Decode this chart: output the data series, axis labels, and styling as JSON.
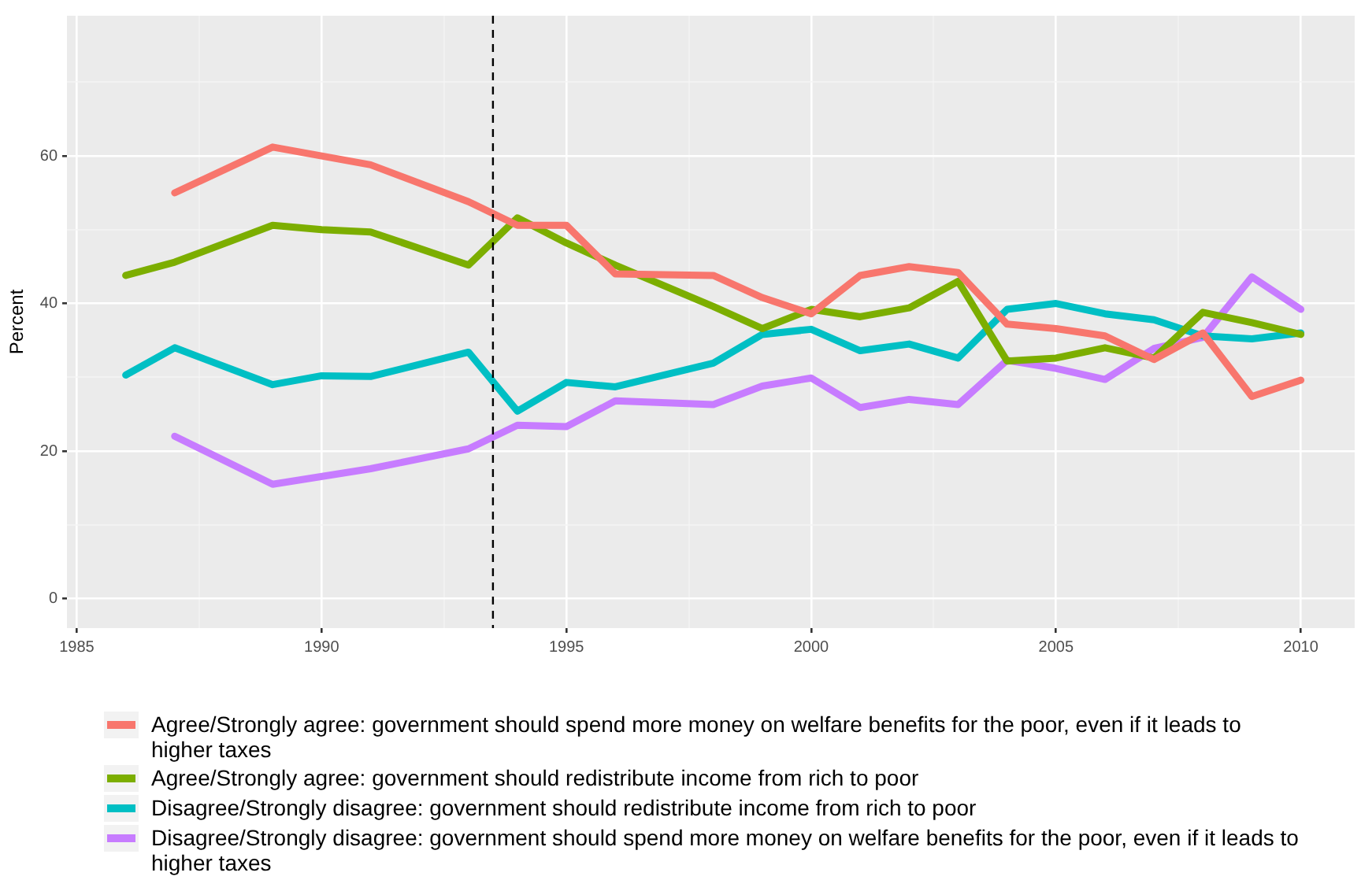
{
  "chart_data": {
    "type": "line",
    "ylabel": "Percent",
    "xlim": [
      1984.8,
      2011.1
    ],
    "ylim": [
      -4,
      79
    ],
    "xticks": [
      1985,
      {
        "value": 1987.5,
        "label": null
      },
      1990,
      {
        "value": 1992.5,
        "label": null
      },
      1995,
      {
        "value": 1997.5,
        "label": null
      },
      2000,
      {
        "value": 2002.5,
        "label": null
      },
      2005,
      {
        "value": 2007.5,
        "label": null
      },
      2010
    ],
    "yticks": [
      0,
      {
        "value": 10,
        "label": null
      },
      20,
      {
        "value": 30,
        "label": null
      },
      40,
      {
        "value": 50,
        "label": null
      },
      60,
      {
        "value": 70,
        "label": null
      }
    ],
    "grid": true,
    "legend": "bottom",
    "marker": "none",
    "line_style": "solid",
    "ref_lines": [
      {
        "axis": "x",
        "value": 1993.5,
        "color": "#000000",
        "line_style": "dashed"
      }
    ],
    "series": [
      {
        "name": "Agree/Strongly agree: government should spend more money on welfare benefits for the poor, even if it leads to higher taxes",
        "color": "#f8766d",
        "x": [
          1987,
          1989,
          1991,
          1993,
          1994,
          1995,
          1996,
          1998,
          1999,
          2000,
          2001,
          2002,
          2003,
          2004,
          2005,
          2006,
          2007,
          2008,
          2009,
          2010
        ],
        "values": [
          55,
          61.2,
          58.8,
          53.8,
          50.6,
          50.6,
          44,
          43.8,
          40.8,
          38.6,
          43.8,
          45,
          44.2,
          37.2,
          36.6,
          35.6,
          32.4,
          36,
          27.4,
          29.6
        ]
      },
      {
        "name": "Agree/Strongly agree: government should redistribute income from rich to poor",
        "color": "#7cae00",
        "x": [
          1986,
          1987,
          1989,
          1990,
          1991,
          1993,
          1994,
          1995,
          1996,
          1998,
          1999,
          2000,
          2001,
          2002,
          2003,
          2004,
          2005,
          2006,
          2007,
          2008,
          2009,
          2010
        ],
        "values": [
          43.8,
          45.6,
          50.6,
          50,
          49.7,
          45.2,
          51.6,
          48.2,
          45.2,
          39.6,
          36.6,
          39.2,
          38.2,
          39.4,
          43,
          32.2,
          32.6,
          34,
          32.6,
          38.8,
          37.4,
          35.8
        ]
      },
      {
        "name": "Disagree/Strongly disagree: government should redistribute income from rich to poor",
        "color": "#00bfc4",
        "x": [
          1986,
          1987,
          1989,
          1990,
          1991,
          1993,
          1994,
          1995,
          1996,
          1998,
          1999,
          2000,
          2001,
          2002,
          2003,
          2004,
          2005,
          2006,
          2007,
          2008,
          2009,
          2010
        ],
        "values": [
          30.3,
          34,
          29,
          30.2,
          30.1,
          33.4,
          25.4,
          29.3,
          28.7,
          31.9,
          35.8,
          36.5,
          33.6,
          34.5,
          32.6,
          39.2,
          40,
          38.6,
          37.8,
          35.6,
          35.2,
          36
        ]
      },
      {
        "name": "Disagree/Strongly disagree: government should spend more money on welfare benefits for the poor, even if it leads to higher taxes",
        "color": "#c77cff",
        "x": [
          1987,
          1989,
          1991,
          1993,
          1994,
          1995,
          1996,
          1998,
          1999,
          2000,
          2001,
          2002,
          2003,
          2004,
          2005,
          2006,
          2007,
          2008,
          2009,
          2010
        ],
        "values": [
          22,
          15.5,
          17.6,
          20.3,
          23.5,
          23.3,
          26.8,
          26.3,
          28.8,
          29.9,
          25.9,
          27,
          26.3,
          32.3,
          31.2,
          29.7,
          33.9,
          35.4,
          43.6,
          39.2
        ]
      }
    ]
  }
}
